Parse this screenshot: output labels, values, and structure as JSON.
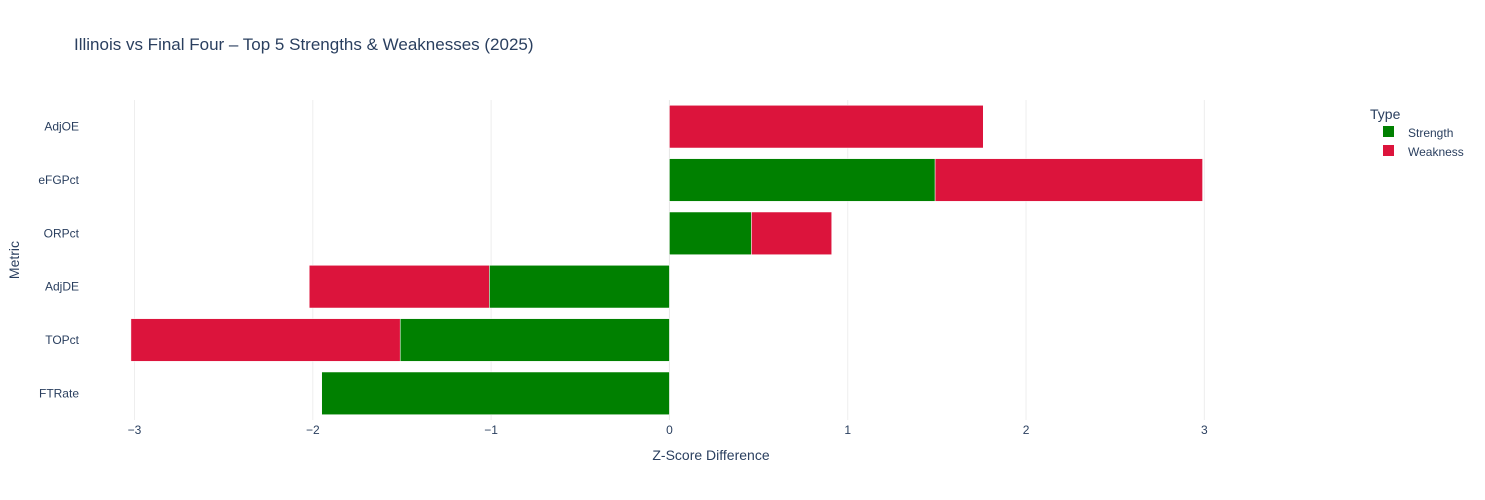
{
  "chart_data": {
    "type": "bar",
    "orientation": "horizontal",
    "barmode": "stack",
    "title": "Illinois vs Final Four – Top 5 Strengths & Weaknesses (2025)",
    "xlabel": "Z-Score Difference",
    "ylabel": "Metric",
    "xlim": [
      -3.3,
      3.8
    ],
    "x_ticks": [
      {
        "value": -3,
        "label": "−3"
      },
      {
        "value": -2,
        "label": "−2"
      },
      {
        "value": -1,
        "label": "−1"
      },
      {
        "value": 0,
        "label": "0"
      },
      {
        "value": 1,
        "label": "1"
      },
      {
        "value": 2,
        "label": "2"
      },
      {
        "value": 3,
        "label": "3"
      }
    ],
    "categories": [
      "AdjOE",
      "eFGPct",
      "ORPct",
      "AdjDE",
      "TOPct",
      "FTRate"
    ],
    "series": [
      {
        "name": "Strength",
        "color": "#008000",
        "values": [
          0,
          1.49,
          0.46,
          -1.01,
          -1.51,
          -1.95
        ]
      },
      {
        "name": "Weakness",
        "color": "#dc143c",
        "values": [
          1.76,
          1.5,
          0.45,
          -1.01,
          -1.51,
          0
        ]
      }
    ],
    "legend": {
      "title": "Type",
      "position": "top-right"
    },
    "grid": true
  }
}
